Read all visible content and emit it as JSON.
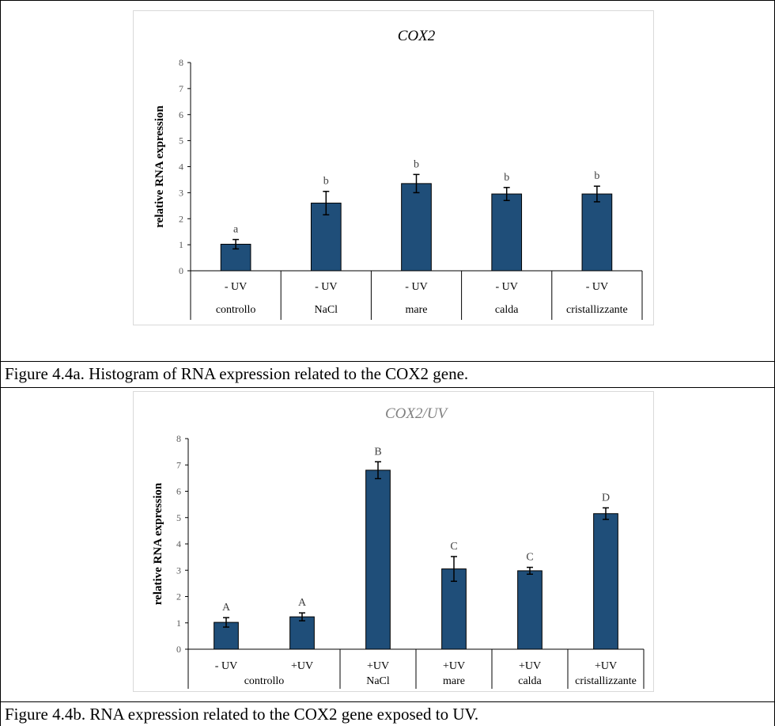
{
  "captions": {
    "fig_a": "Figure 4.4a. Histogram of RNA expression related to the COX2 gene.",
    "fig_b": "Figure 4.4b. RNA expression related to the COX2 gene exposed to UV."
  },
  "colors": {
    "bar": "#1F4E79",
    "axis": "#000000",
    "letters": "#404040",
    "title_b": "#808080"
  },
  "chart_data": [
    {
      "type": "bar",
      "title": "COX2",
      "ylabel": "relative RNA expression",
      "xlabel": "",
      "ylim": [
        0,
        8
      ],
      "yticks": [
        "0",
        "1",
        "2",
        "3",
        "4",
        "5",
        "6",
        "7",
        "8"
      ],
      "grid": false,
      "categories": [
        "- UV",
        "- UV",
        "- UV",
        "- UV",
        "- UV"
      ],
      "groups": [
        {
          "label": "controllo",
          "span": 1
        },
        {
          "label": "NaCl",
          "span": 1
        },
        {
          "label": "mare",
          "span": 1
        },
        {
          "label": "calda",
          "span": 1
        },
        {
          "label": "cristallizzante",
          "span": 1
        }
      ],
      "values": [
        1.02,
        2.6,
        3.35,
        2.95,
        2.95
      ],
      "errors": [
        0.18,
        0.45,
        0.35,
        0.25,
        0.3
      ],
      "labels": [
        "a",
        "b",
        "b",
        "b",
        "b"
      ]
    },
    {
      "type": "bar",
      "title": "COX2/UV",
      "ylabel": "relative RNA expression",
      "xlabel": "",
      "ylim": [
        0,
        8
      ],
      "yticks": [
        "0",
        "1",
        "2",
        "3",
        "4",
        "5",
        "6",
        "7",
        "8"
      ],
      "grid": false,
      "categories": [
        "- UV",
        "+UV",
        "+UV",
        "+UV",
        "+UV",
        "+UV"
      ],
      "groups": [
        {
          "label": "controllo",
          "span": 2
        },
        {
          "label": "NaCl",
          "span": 1
        },
        {
          "label": "mare",
          "span": 1
        },
        {
          "label": "calda",
          "span": 1
        },
        {
          "label": "cristallizzante",
          "span": 1
        }
      ],
      "values": [
        1.02,
        1.23,
        6.8,
        3.05,
        2.98,
        5.15
      ],
      "errors": [
        0.18,
        0.15,
        0.32,
        0.47,
        0.13,
        0.22
      ],
      "labels": [
        "A",
        "A",
        "B",
        "C",
        "C",
        "D"
      ]
    }
  ]
}
